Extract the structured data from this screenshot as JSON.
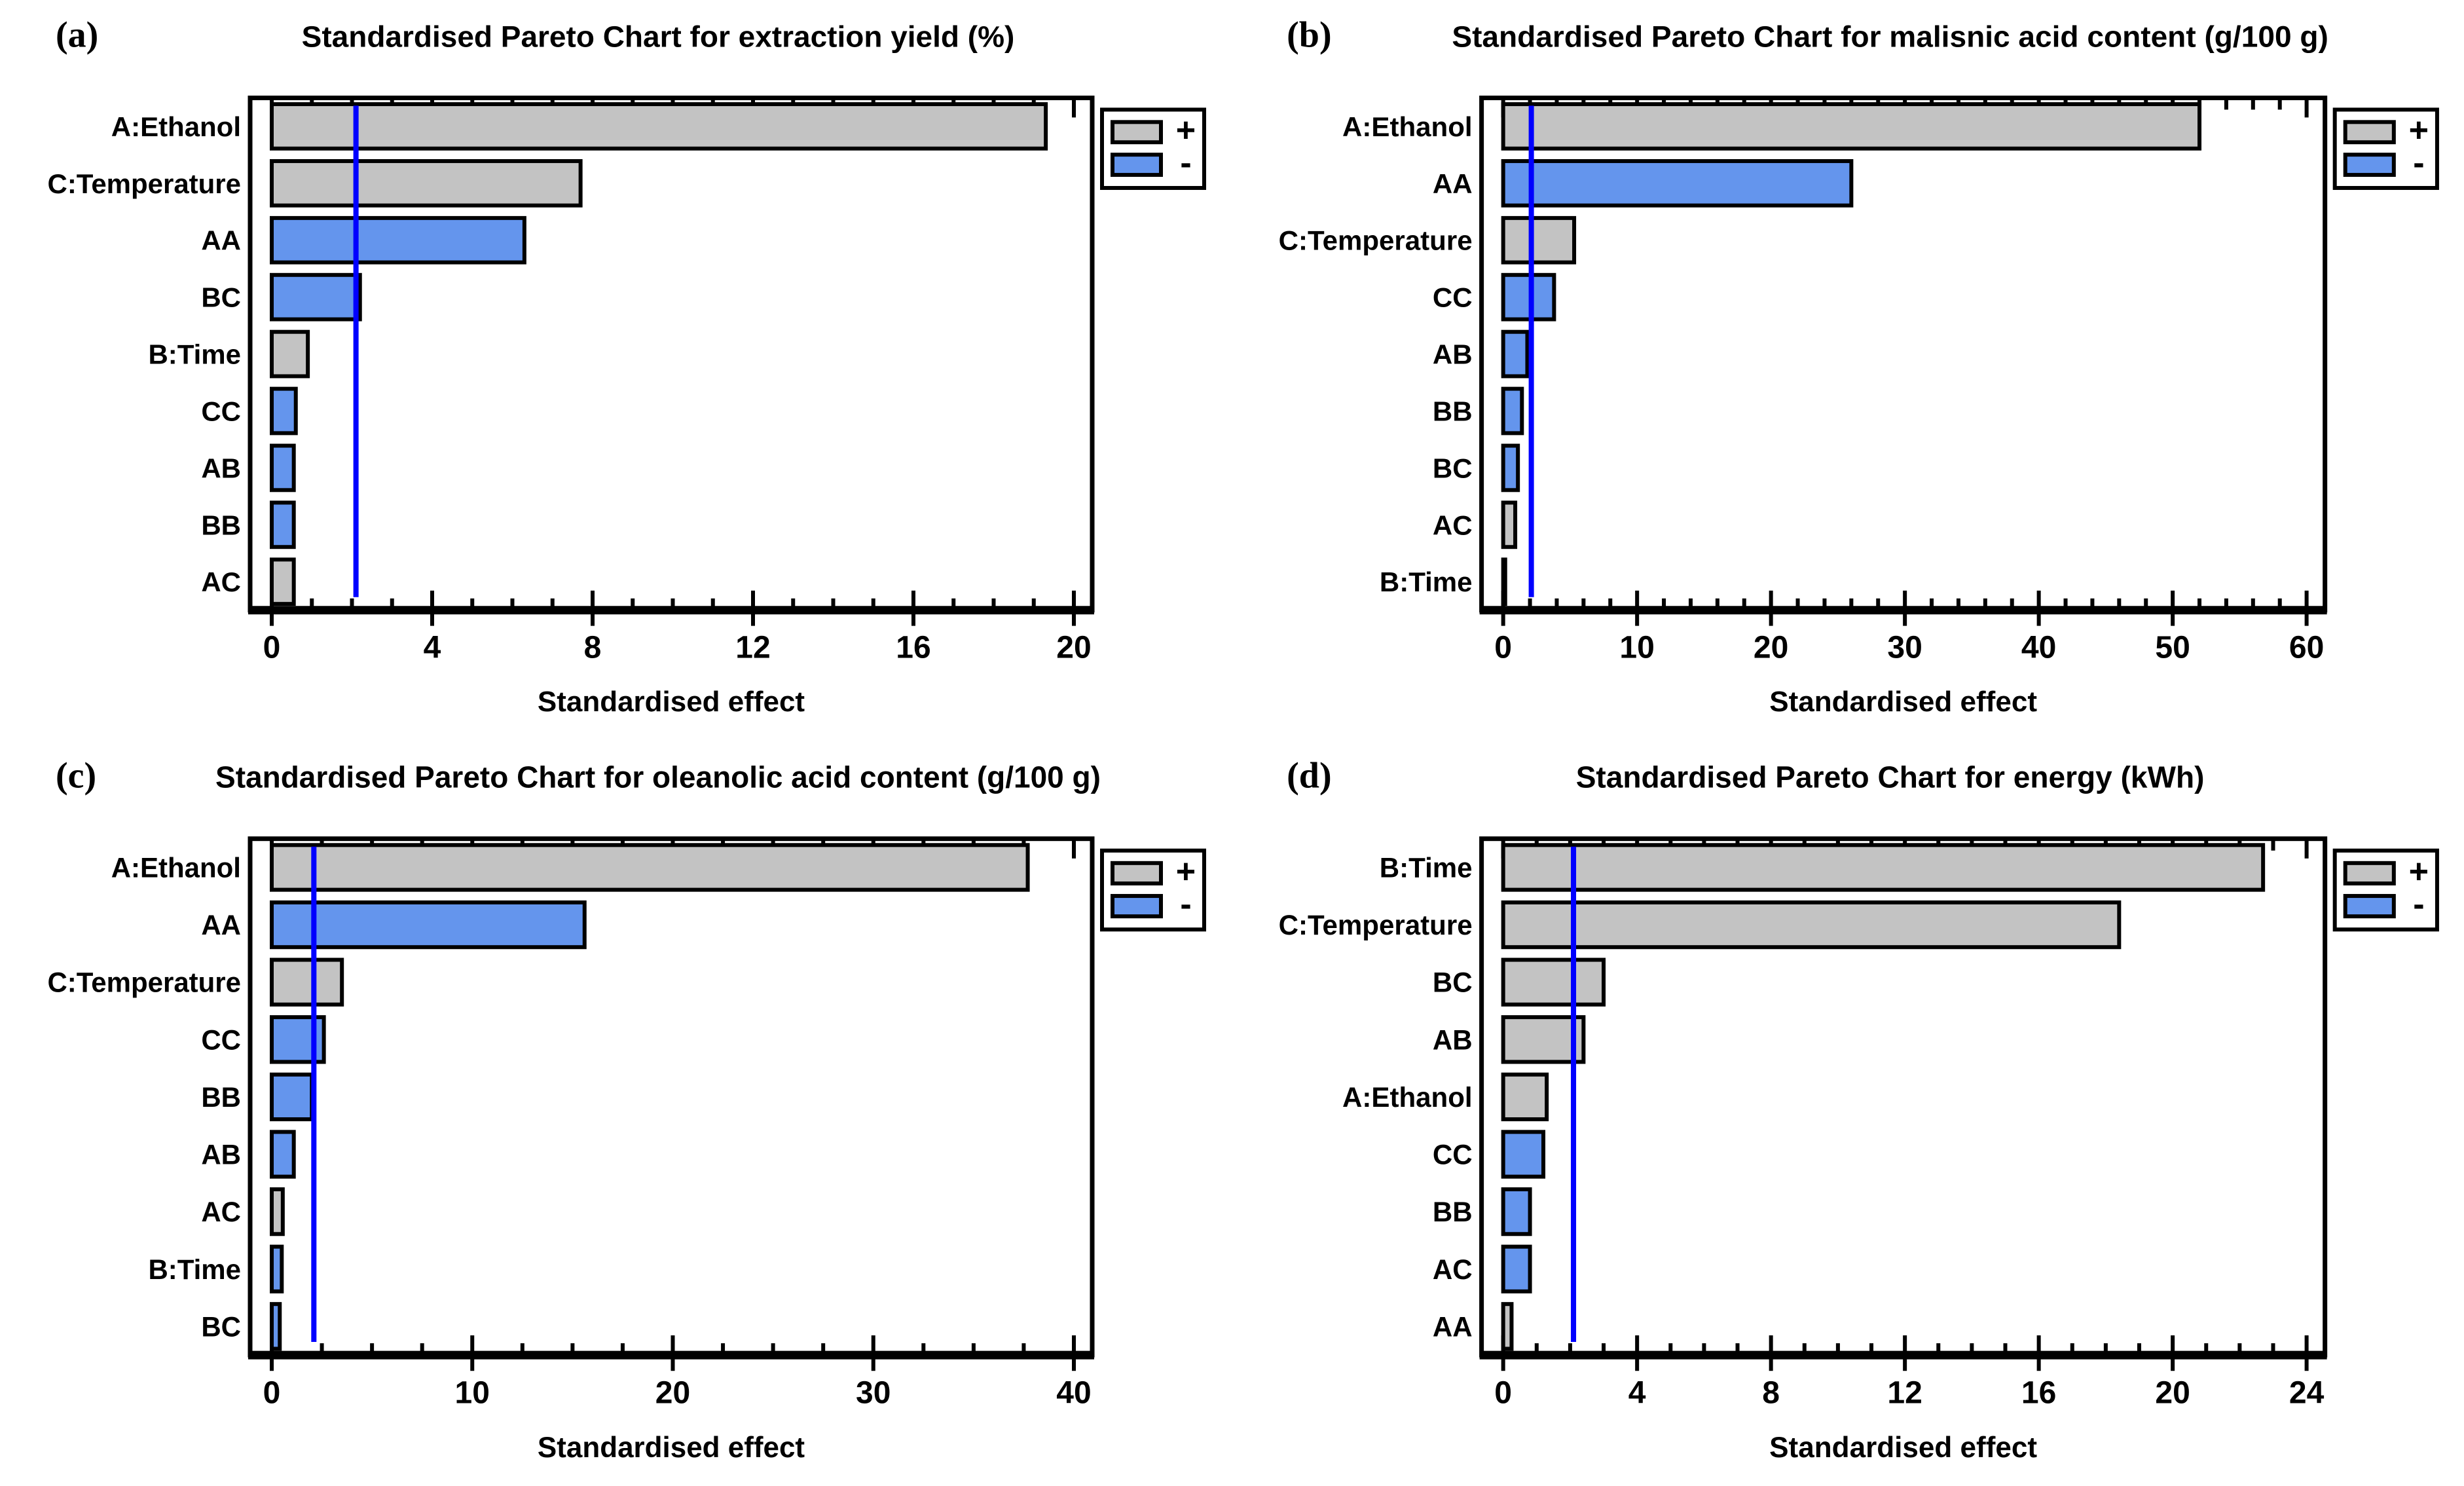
{
  "figure": {
    "shared_xlabel": "Standardised effect",
    "colors": {
      "positive_bar": "#C3C3C3",
      "negative_bar": "#6495ED",
      "bar_border": "#000000",
      "reference_line": "#0000FF",
      "axis": "#000000",
      "background": "#FFFFFF"
    },
    "legend": {
      "positive_label": "+",
      "negative_label": "-"
    }
  },
  "chart_data": [
    {
      "type": "bar",
      "orientation": "horizontal",
      "panel_label": "(a)",
      "title": "Standardised Pareto Chart for extraction yield (%)",
      "xlabel": "Standardised effect",
      "xlim": [
        0,
        20
      ],
      "xtick_step": 4,
      "minor_tick_step": 1,
      "xticks": [
        0,
        4,
        8,
        12,
        16,
        20
      ],
      "reference_line": 2.1,
      "legend": [
        {
          "label": "+",
          "color": "#C3C3C3"
        },
        {
          "label": "-",
          "color": "#6495ED"
        }
      ],
      "categories": [
        "A:Ethanol",
        "C:Temperature",
        "AA",
        "BC",
        "B:Time",
        "CC",
        "AB",
        "BB",
        "AC"
      ],
      "values": [
        19.3,
        7.7,
        6.3,
        2.2,
        0.9,
        0.6,
        0.55,
        0.55,
        0.55
      ],
      "signs": [
        "+",
        "+",
        "-",
        "-",
        "+",
        "-",
        "-",
        "-",
        "+"
      ]
    },
    {
      "type": "bar",
      "orientation": "horizontal",
      "panel_label": "(b)",
      "title": "Standardised Pareto Chart for malisnic acid content (g/100 g)",
      "xlabel": "Standardised effect",
      "xlim": [
        0,
        60
      ],
      "xtick_step": 10,
      "minor_tick_step": 2,
      "xticks": [
        0,
        10,
        20,
        30,
        40,
        50,
        60
      ],
      "reference_line": 2.1,
      "legend": [
        {
          "label": "+",
          "color": "#C3C3C3"
        },
        {
          "label": "-",
          "color": "#6495ED"
        }
      ],
      "categories": [
        "A:Ethanol",
        "AA",
        "C:Temperature",
        "CC",
        "AB",
        "BB",
        "BC",
        "AC",
        "B:Time"
      ],
      "values": [
        52.0,
        26.0,
        5.3,
        3.8,
        1.8,
        1.4,
        1.1,
        0.9,
        0.15
      ],
      "signs": [
        "+",
        "-",
        "+",
        "-",
        "-",
        "-",
        "-",
        "+",
        "+"
      ]
    },
    {
      "type": "bar",
      "orientation": "horizontal",
      "panel_label": "(c)",
      "title": "Standardised Pareto Chart for oleanolic acid content (g/100 g)",
      "xlabel": "Standardised effect",
      "xlim": [
        0,
        40
      ],
      "xtick_step": 10,
      "minor_tick_step": 2.5,
      "xticks": [
        0,
        10,
        20,
        30,
        40
      ],
      "reference_line": 2.1,
      "legend": [
        {
          "label": "+",
          "color": "#C3C3C3"
        },
        {
          "label": "-",
          "color": "#6495ED"
        }
      ],
      "categories": [
        "A:Ethanol",
        "AA",
        "C:Temperature",
        "CC",
        "BB",
        "AB",
        "AC",
        "B:Time",
        "BC"
      ],
      "values": [
        37.7,
        15.6,
        3.5,
        2.6,
        2.0,
        1.1,
        0.55,
        0.5,
        0.4
      ],
      "signs": [
        "+",
        "-",
        "+",
        "-",
        "-",
        "-",
        "+",
        "-",
        "-"
      ]
    },
    {
      "type": "bar",
      "orientation": "horizontal",
      "panel_label": "(d)",
      "title": "Standardised Pareto Chart for energy (kWh)",
      "xlabel": "Standardised effect",
      "xlim": [
        0,
        24
      ],
      "xtick_step": 4,
      "minor_tick_step": 1,
      "xticks": [
        0,
        4,
        8,
        12,
        16,
        20,
        24
      ],
      "reference_line": 2.1,
      "legend": [
        {
          "label": "+",
          "color": "#C3C3C3"
        },
        {
          "label": "-",
          "color": "#6495ED"
        }
      ],
      "categories": [
        "B:Time",
        "C:Temperature",
        "BC",
        "AB",
        "A:Ethanol",
        "CC",
        "BB",
        "AC",
        "AA"
      ],
      "values": [
        22.7,
        18.4,
        3.0,
        2.4,
        1.3,
        1.2,
        0.8,
        0.8,
        0.25
      ],
      "signs": [
        "+",
        "+",
        "+",
        "+",
        "+",
        "-",
        "-",
        "-",
        "+"
      ]
    }
  ]
}
